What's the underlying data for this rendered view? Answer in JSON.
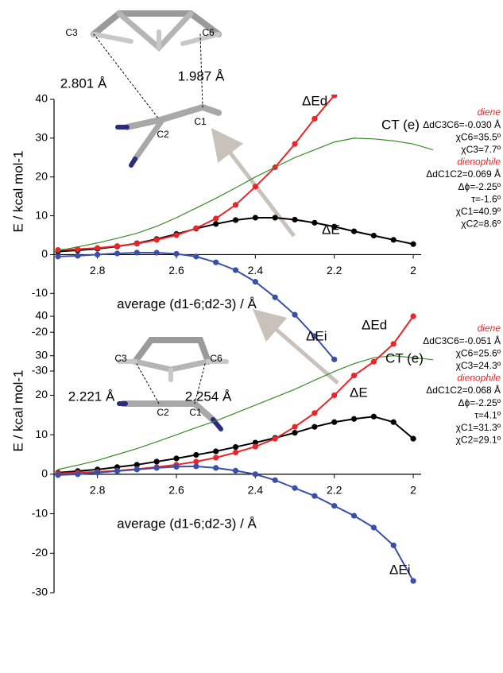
{
  "chart_data": [
    {
      "type": "line",
      "ylabel": "E / kcal mol-1",
      "xlabel": "average (d1-6;d2-3) / Å",
      "xlim": [
        2.91,
        1.98
      ],
      "ylim": [
        -30,
        40
      ],
      "xticks": [
        2.8,
        2.6,
        2.4,
        2.2,
        2
      ],
      "yticks": [
        -30,
        -20,
        -10,
        0,
        10,
        20,
        30,
        40
      ],
      "x": [
        2.9,
        2.85,
        2.8,
        2.75,
        2.7,
        2.65,
        2.6,
        2.55,
        2.5,
        2.45,
        2.4,
        2.35,
        2.3,
        2.25,
        2.2,
        2.15,
        2.1,
        2.05,
        2.0,
        1.95
      ],
      "series": [
        {
          "name": "ΔE",
          "color": "#000000",
          "marker": "circle",
          "values": [
            0.8,
            1.1,
            1.5,
            2.1,
            2.9,
            4.0,
            5.3,
            6.7,
            7.9,
            8.9,
            9.5,
            9.5,
            9.0,
            8.2,
            7.2,
            6.0,
            4.9,
            3.8,
            2.7,
            null
          ]
        },
        {
          "name": "ΔEd",
          "color": "#e8262a",
          "marker": "circle",
          "values": [
            1.2,
            1.4,
            1.7,
            2.2,
            2.8,
            3.8,
            5.0,
            6.8,
            9.3,
            12.8,
            17.5,
            22.5,
            28.5,
            35,
            41,
            null,
            null,
            null,
            null,
            null
          ]
        },
        {
          "name": "ΔEi",
          "color": "#3a4fa8",
          "marker": "circle",
          "values": [
            -0.5,
            -0.3,
            0,
            0.3,
            0.5,
            0.5,
            0.2,
            -0.5,
            -2,
            -4,
            -7,
            -11,
            -15.5,
            -21,
            -27,
            null,
            null,
            null,
            null,
            null
          ]
        },
        {
          "name": "CT (e)",
          "color": "#3a8a2a",
          "values": [
            1.0,
            2.0,
            3.0,
            4.2,
            5.5,
            7.3,
            9.5,
            12,
            14.5,
            17.2,
            20,
            22.5,
            25,
            27,
            29,
            30,
            29.8,
            29.3,
            28.5,
            27
          ]
        }
      ],
      "structure_labels": [
        "C3",
        "C6",
        "C2",
        "C1",
        "2.801 Å",
        "1.987 Å"
      ],
      "parameters": [
        "diene",
        "ΔdC3C6=-0.030 Å",
        "χC6=35.5º",
        "χC3=7.7º",
        "dienophile",
        "ΔdC1C2=0.069 Å",
        "Δϕ=-2.25º",
        "τ=-1.6º",
        "χC1=40.9º",
        "χC2=8.6º"
      ]
    },
    {
      "type": "line",
      "ylabel": "E / kcal mol-1",
      "xlabel": "average (d1-6;d2-3) / Å",
      "xlim": [
        2.91,
        1.98
      ],
      "ylim": [
        -30,
        40
      ],
      "xticks": [
        2.8,
        2.6,
        2.4,
        2.2,
        2
      ],
      "yticks": [
        -30,
        -20,
        -10,
        0,
        10,
        20,
        30,
        40
      ],
      "x": [
        2.9,
        2.85,
        2.8,
        2.75,
        2.7,
        2.65,
        2.6,
        2.55,
        2.5,
        2.45,
        2.4,
        2.35,
        2.3,
        2.25,
        2.2,
        2.15,
        2.1,
        2.05,
        2.0,
        1.95
      ],
      "series": [
        {
          "name": "ΔE",
          "color": "#000000",
          "marker": "circle",
          "values": [
            0.4,
            0.8,
            1.2,
            1.8,
            2.4,
            3.2,
            4.0,
            4.9,
            5.8,
            6.9,
            8.0,
            9.2,
            10.5,
            12.0,
            13.2,
            14.0,
            14.6,
            13.2,
            9.0,
            null
          ]
        },
        {
          "name": "ΔEd",
          "color": "#e8262a",
          "marker": "circle",
          "values": [
            0.2,
            0.4,
            0.6,
            0.9,
            1.3,
            1.8,
            2.4,
            3.2,
            4.2,
            5.5,
            7.0,
            9.0,
            12.0,
            15.5,
            20.0,
            25.0,
            28.5,
            33.0,
            40.0,
            null
          ]
        },
        {
          "name": "ΔEi",
          "color": "#3a4fa8",
          "marker": "circle",
          "values": [
            -0.2,
            0,
            0.4,
            0.8,
            1.2,
            1.6,
            1.9,
            2.0,
            1.6,
            0.9,
            0,
            -1.5,
            -3.5,
            -5.5,
            -8,
            -10.5,
            -13.5,
            -18,
            -27,
            null
          ]
        },
        {
          "name": "CT (e)",
          "color": "#3a8a2a",
          "values": [
            1.2,
            2.3,
            3.5,
            5.0,
            6.5,
            8.2,
            10,
            11.8,
            13.5,
            15.5,
            17.5,
            19.5,
            21.5,
            23.8,
            26,
            28,
            29.5,
            30,
            29.5,
            29
          ]
        }
      ],
      "structure_labels": [
        "C3",
        "C6",
        "C2",
        "C1",
        "2.221 Å",
        "2.254 Å"
      ],
      "parameters": [
        "diene",
        "ΔdC3C6=-0.051 Å",
        "χC6=25.6º",
        "χC3=24.3º",
        "dienophile",
        "ΔdC1C2=0.068 Å",
        "Δϕ=-2.25º",
        "τ=4.1º",
        "χC1=31.3º",
        "χC2=29.1º"
      ]
    }
  ]
}
